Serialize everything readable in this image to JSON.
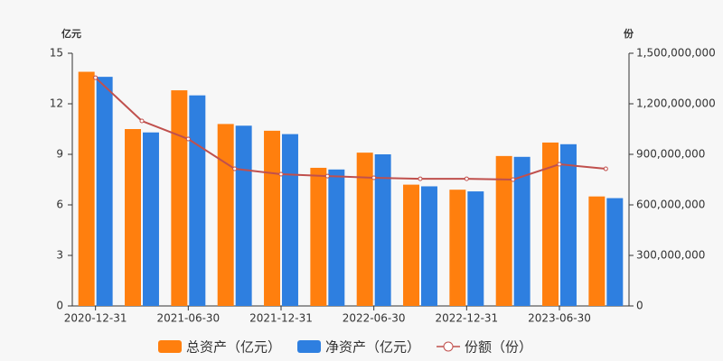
{
  "chart_data": {
    "type": "bar-line",
    "y_unit": "亿元",
    "y2_unit": "份",
    "categories": [
      "2020-12-31",
      null,
      "2021-06-30",
      null,
      "2021-12-31",
      null,
      "2022-06-30",
      null,
      "2022-12-31",
      null,
      "2023-06-30",
      null
    ],
    "series": [
      {
        "name": "总资产（亿元）",
        "color": "#ff7f0e",
        "type": "bar",
        "values": [
          13.9,
          10.5,
          12.8,
          10.8,
          10.4,
          8.2,
          9.1,
          7.2,
          6.9,
          8.9,
          9.7,
          6.5
        ]
      },
      {
        "name": "净资产（亿元）",
        "color": "#2e7fe0",
        "type": "bar",
        "values": [
          13.6,
          10.3,
          12.5,
          10.7,
          10.2,
          8.1,
          9.0,
          7.1,
          6.8,
          8.85,
          9.6,
          6.4
        ]
      },
      {
        "name": "份额（份）",
        "color": "#c0504d",
        "type": "line",
        "axis": "y2",
        "values": [
          1355000000,
          1098000000,
          991000000,
          814000000,
          782000000,
          771000000,
          761000000,
          755000000,
          755000000,
          750000000,
          841000000,
          814000000
        ]
      }
    ],
    "ylim": [
      0,
      15
    ],
    "yticks": [
      0,
      3,
      6,
      9,
      12,
      15
    ],
    "y2lim": [
      0,
      1500000000
    ],
    "y2ticks": [
      0,
      {
        "value": 300000000,
        "label": "300,000,000"
      },
      {
        "value": 600000000,
        "label": "600,000,000"
      },
      {
        "value": 900000000,
        "label": "900,000,000"
      },
      {
        "value": 1200000000,
        "label": "1,200,000,000"
      },
      {
        "value": 1500000000,
        "label": "1,500,000,000"
      }
    ]
  }
}
